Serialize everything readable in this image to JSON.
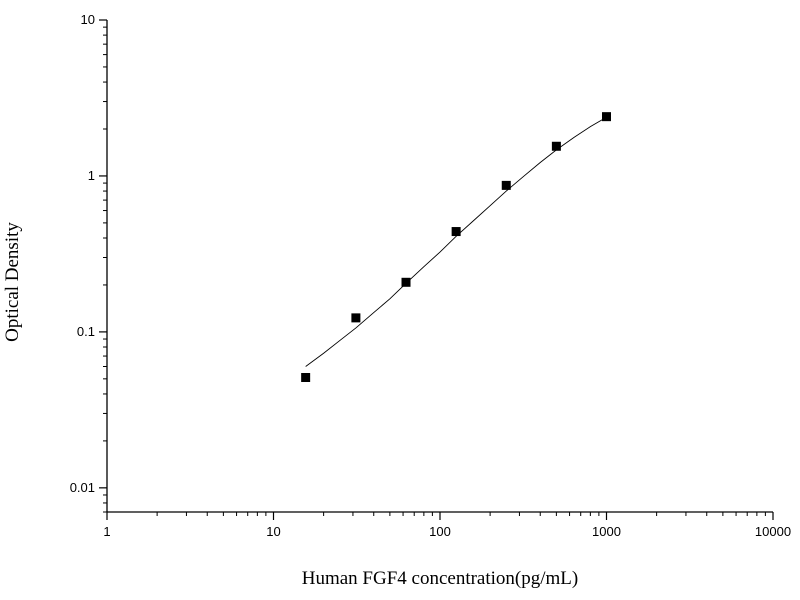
{
  "chart_data": {
    "type": "scatter",
    "title": "",
    "xlabel": "Human FGF4 concentration(pg/mL)",
    "ylabel": "Optical Density",
    "x_scale": "log",
    "y_scale": "log",
    "xlim": [
      1,
      10000
    ],
    "ylim": [
      0.007,
      10
    ],
    "x_ticks": [
      1,
      10,
      100,
      1000,
      10000
    ],
    "x_tick_labels": [
      "1",
      "10",
      "100",
      "1000",
      "10000"
    ],
    "y_ticks": [
      0.01,
      0.1,
      1,
      10
    ],
    "y_tick_labels": [
      "0.01",
      "0.1",
      "1",
      "10"
    ],
    "grid": false,
    "legend": "none",
    "series": [
      {
        "marker": "square",
        "color": "#000000",
        "x": [
          15.6,
          31.25,
          62.5,
          125,
          250,
          500,
          1000
        ],
        "y": [
          0.051,
          0.123,
          0.208,
          0.44,
          0.87,
          1.55,
          2.4
        ]
      }
    ],
    "fit_curve": {
      "color": "#000000",
      "x": [
        15.6,
        20,
        25,
        31.25,
        40,
        50,
        62.5,
        80,
        100,
        125,
        160,
        200,
        250,
        320,
        400,
        500,
        640,
        800,
        1000
      ],
      "y": [
        0.06,
        0.073,
        0.088,
        0.106,
        0.133,
        0.163,
        0.205,
        0.262,
        0.325,
        0.41,
        0.52,
        0.645,
        0.8,
        1.0,
        1.22,
        1.47,
        1.77,
        2.07,
        2.38
      ]
    }
  }
}
